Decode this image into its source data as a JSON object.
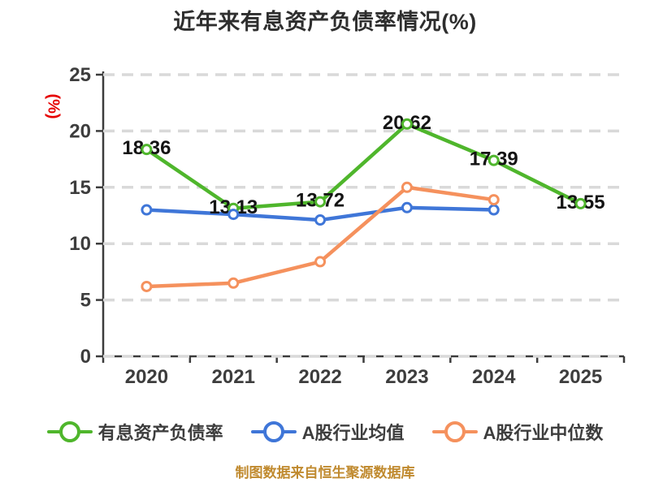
{
  "chart": {
    "title": "近年来有息资产负债率情况(%)",
    "y_axis": {
      "unit_label": "(%)",
      "unit_color": "#e60000"
    },
    "source_note": "制图数据来自恒生聚源数据库",
    "source_note_color": "#c08a2f"
  },
  "chart_data": {
    "type": "line",
    "title": "近年来有息资产负债率情况(%)",
    "categories": [
      "2020",
      "2021",
      "2022",
      "2023",
      "2024",
      "2025"
    ],
    "series": [
      {
        "name": "有息资产负债率",
        "color": "#4fb62c",
        "values": [
          18.36,
          13.13,
          13.72,
          20.62,
          17.39,
          13.55
        ],
        "show_point_labels": true
      },
      {
        "name": "A股行业均值",
        "color": "#3f76d8",
        "values": [
          13.0,
          12.6,
          12.1,
          13.2,
          13.0,
          null
        ],
        "show_point_labels": false
      },
      {
        "name": "A股行业中位数",
        "color": "#f5915d",
        "values": [
          6.2,
          6.5,
          8.4,
          15.0,
          13.9,
          null
        ],
        "show_point_labels": false
      }
    ],
    "ylim": [
      0,
      25
    ],
    "yticks": [
      0,
      5,
      10,
      15,
      20,
      25
    ],
    "ylabel": "(%)",
    "xlabel": "",
    "grid": "horizontal-dashed",
    "gridline_color": "#d9d9d9",
    "axis_color": "#3c3c3c",
    "legend_position": "bottom"
  }
}
